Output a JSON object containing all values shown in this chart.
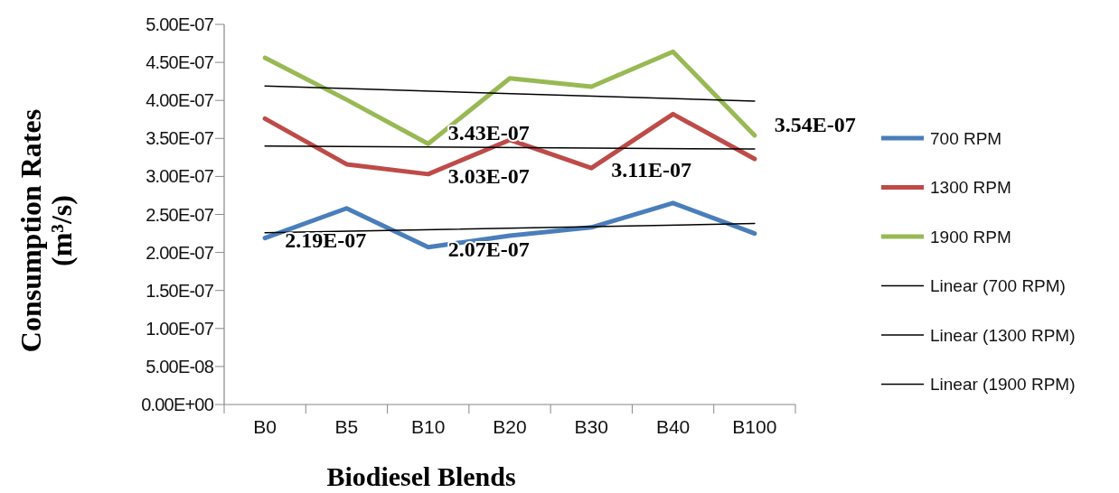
{
  "chart_data": {
    "type": "line",
    "xlabel": "Biodiesel Blends",
    "ylabel": "Consumption Rates (m³/s)",
    "categories": [
      "B0",
      "B5",
      "B10",
      "B20",
      "B30",
      "B40",
      "B100"
    ],
    "series": [
      {
        "name": "700 RPM",
        "color": "#4a7ebb",
        "values": [
          2.19e-07,
          2.58e-07,
          2.07e-07,
          2.22e-07,
          2.33e-07,
          2.65e-07,
          2.25e-07
        ],
        "value_labels": [
          "2.19E-07",
          null,
          "2.07E-07",
          null,
          null,
          null,
          null
        ]
      },
      {
        "name": "1300 RPM",
        "color": "#be4b48",
        "values": [
          3.76e-07,
          3.16e-07,
          3.03e-07,
          3.48e-07,
          3.11e-07,
          3.82e-07,
          3.23e-07
        ],
        "value_labels": [
          null,
          null,
          "3.03E-07",
          null,
          "3.11E-07",
          null,
          null
        ]
      },
      {
        "name": "1900 RPM",
        "color": "#98b954",
        "values": [
          4.56e-07,
          4.01e-07,
          3.43e-07,
          4.29e-07,
          4.18e-07,
          4.64e-07,
          3.54e-07
        ],
        "value_labels": [
          null,
          null,
          "3.43E-07",
          null,
          null,
          null,
          "3.54E-07"
        ]
      },
      {
        "name": "Linear (700 RPM)",
        "color": "#000000",
        "x": [
          "B0",
          "B100"
        ],
        "values": [
          2.26e-07,
          2.38e-07
        ]
      },
      {
        "name": "Linear (1300 RPM)",
        "color": "#000000",
        "x": [
          "B0",
          "B100"
        ],
        "values": [
          3.4e-07,
          3.36e-07
        ]
      },
      {
        "name": "Linear (1900 RPM)",
        "color": "#000000",
        "x": [
          "B0",
          "B100"
        ],
        "values": [
          4.19e-07,
          3.99e-07
        ]
      }
    ],
    "ylim": [
      0,
      5e-07
    ],
    "yticks": [
      {
        "value": 0,
        "label": "0.00E+00"
      },
      {
        "value": 5e-08,
        "label": "5.00E-08"
      },
      {
        "value": 1e-07,
        "label": "1.00E-07"
      },
      {
        "value": 1.5e-07,
        "label": "1.50E-07"
      },
      {
        "value": 2e-07,
        "label": "2.00E-07"
      },
      {
        "value": 2.5e-07,
        "label": "2.50E-07"
      },
      {
        "value": 3e-07,
        "label": "3.00E-07"
      },
      {
        "value": 3.5e-07,
        "label": "3.50E-07"
      },
      {
        "value": 4e-07,
        "label": "4.00E-07"
      },
      {
        "value": 4.5e-07,
        "label": "4.50E-07"
      },
      {
        "value": 5e-07,
        "label": "5.00E-07"
      }
    ],
    "legend": "right",
    "marker": "none",
    "grid": false
  }
}
